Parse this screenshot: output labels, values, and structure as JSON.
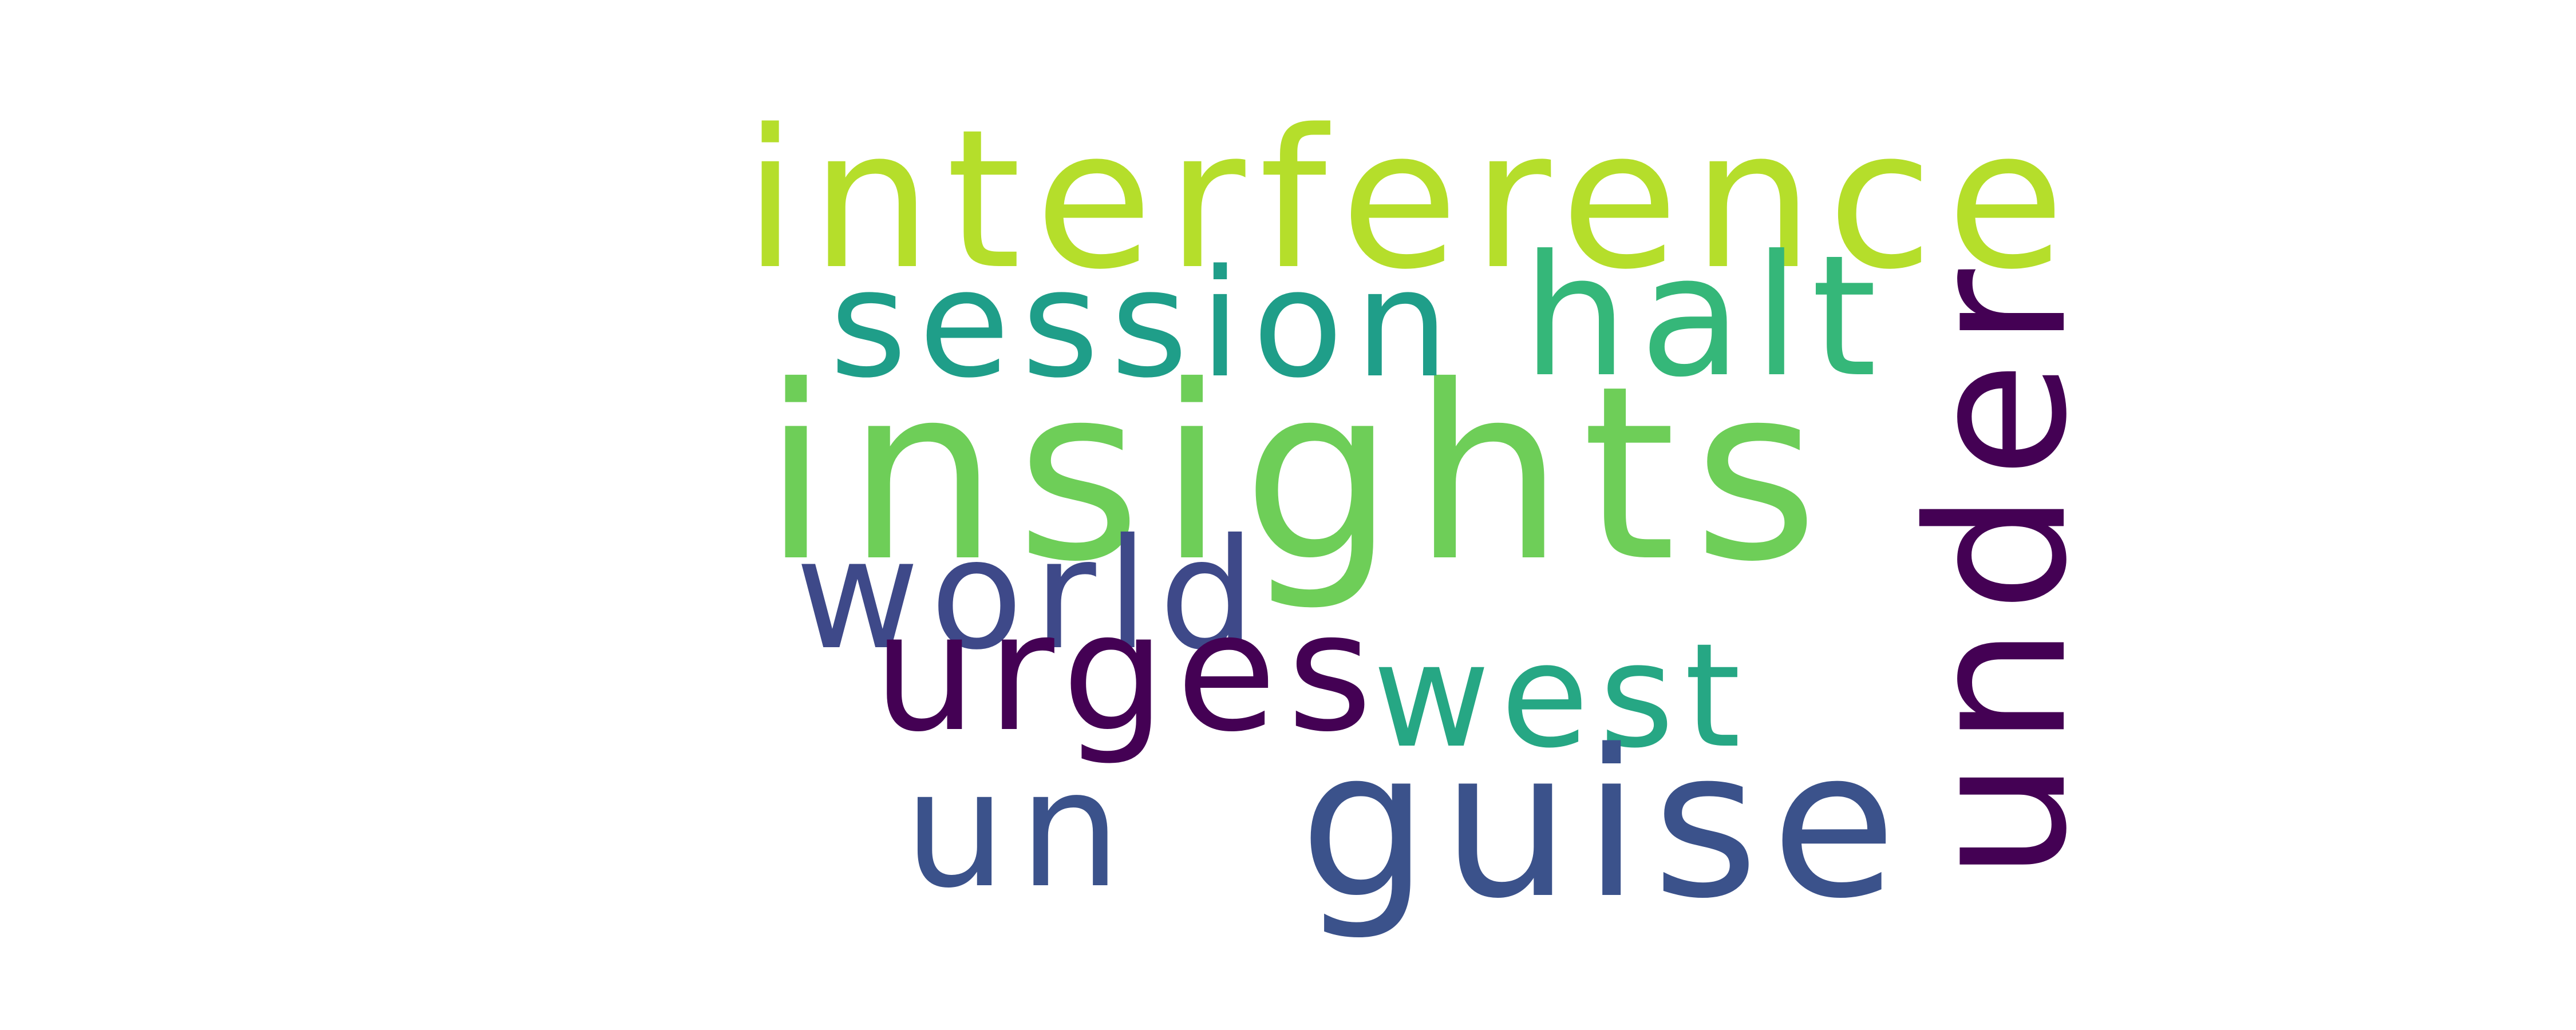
{
  "words": [
    {
      "id": "interference",
      "text": "interference",
      "color": "#b5de2b"
    },
    {
      "id": "insights",
      "text": "insights",
      "color": "#6ece58"
    },
    {
      "id": "session",
      "text": "session",
      "color": "#1f9e89"
    },
    {
      "id": "halt",
      "text": "halt",
      "color": "#35b779"
    },
    {
      "id": "world",
      "text": "world",
      "color": "#3e4989"
    },
    {
      "id": "urges",
      "text": "urges",
      "color": "#440154"
    },
    {
      "id": "west",
      "text": "west",
      "color": "#26a784"
    },
    {
      "id": "un",
      "text": "un",
      "color": "#3b528b"
    },
    {
      "id": "guise",
      "text": "guise",
      "color": "#3b528b"
    },
    {
      "id": "under",
      "text": "under",
      "color": "#440154",
      "orientation": "vertical"
    }
  ]
}
